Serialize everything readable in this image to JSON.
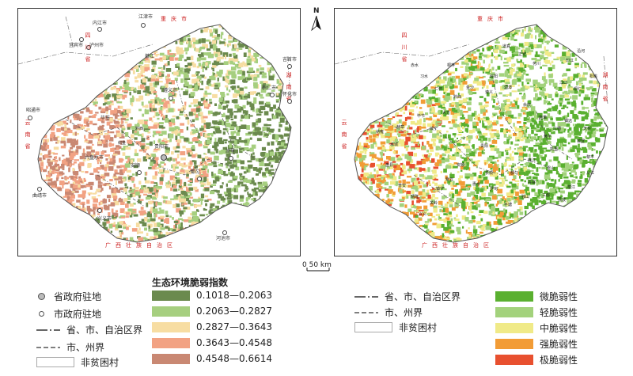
{
  "north_label": "N",
  "scale_label": "0    50 km",
  "map_labels": {
    "left_top": [
      "内江市",
      "泸州市",
      "宜宾市",
      "江津市",
      "綦江"
    ],
    "left_region": [
      "重",
      "庆",
      "市",
      "四",
      "川",
      "省",
      "湖",
      "南",
      "省",
      "云",
      "南",
      "省",
      "广",
      "西",
      "壮",
      "族",
      "自",
      "治",
      "区"
    ],
    "left_cities": [
      "昭通市",
      "曲靖市",
      "遵义市",
      "铜仁市",
      "怀化市",
      "吉首市",
      "贵阳市",
      "安顺",
      "六盘水市",
      "毕节",
      "凯里",
      "都匀",
      "兴义市",
      "河池市",
      "黔西",
      "织金"
    ],
    "right_cities": [
      "遵义",
      "凯里",
      "都匀",
      "安顺",
      "贵阳",
      "兴义",
      "毕节",
      "铜仁",
      "江口",
      "松桃",
      "印江",
      "沿河",
      "道真",
      "正安",
      "务川",
      "绥阳",
      "湄潭",
      "余庆",
      "施秉",
      "镇远",
      "黄平",
      "雷山",
      "榕江",
      "从江",
      "黎平",
      "锦屏",
      "天柱",
      "三穗",
      "麻江",
      "丹寨",
      "三都",
      "荔波",
      "独山",
      "平塘",
      "罗甸",
      "长顺",
      "惠水",
      "紫云",
      "镇宁",
      "关岭",
      "晴隆",
      "普安",
      "盘县",
      "水城",
      "纳雍",
      "赫章",
      "威宁",
      "大方",
      "黔西",
      "金沙",
      "仁怀",
      "习水",
      "赤水",
      "桐梓"
    ]
  },
  "legend_left": {
    "points": [
      {
        "label": "省政府驻地",
        "kind": "provincial"
      },
      {
        "label": "市政府驻地",
        "kind": "city"
      }
    ],
    "lines": [
      {
        "label": "省、市、自治区界",
        "kind": "province"
      },
      {
        "label": "市、州界",
        "kind": "city"
      }
    ],
    "nonpoor": "非贫困村",
    "index_title": "生态环境脆弱指数",
    "classes": [
      {
        "label": "0.1018—0.2063",
        "color": "#6b8a4e"
      },
      {
        "label": "0.2063—0.2827",
        "color": "#a6cf7f"
      },
      {
        "label": "0.2827—0.3643",
        "color": "#f7dda2"
      },
      {
        "label": "0.3643—0.4548",
        "color": "#f2a283"
      },
      {
        "label": "0.4548—0.6614",
        "color": "#c98873"
      }
    ]
  },
  "legend_right": {
    "lines": [
      {
        "label": "省、市、自治区界",
        "kind": "province"
      },
      {
        "label": "市、州界",
        "kind": "city"
      }
    ],
    "nonpoor": "非贫困村",
    "classes": [
      {
        "label": "微脆弱性",
        "color": "#5ab030"
      },
      {
        "label": "轻脆弱性",
        "color": "#a3d27c"
      },
      {
        "label": "中脆弱性",
        "color": "#f0ea88"
      },
      {
        "label": "强脆弱性",
        "color": "#f29c36"
      },
      {
        "label": "极脆弱性",
        "color": "#e8502f"
      }
    ]
  }
}
